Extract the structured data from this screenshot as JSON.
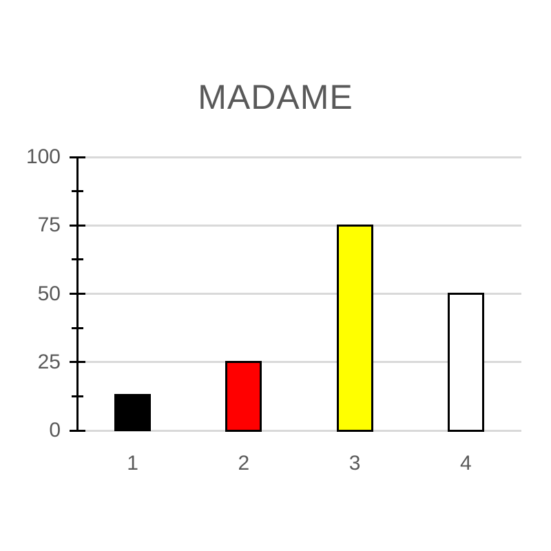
{
  "page": {
    "background": "#ffffff"
  },
  "chart_data": {
    "type": "bar",
    "title": "MADAME",
    "categories": [
      "1",
      "2",
      "3",
      "4"
    ],
    "values": [
      13,
      25,
      75,
      50
    ],
    "bar_fill_colors": [
      "#000000",
      "#ff0000",
      "#ffff00",
      "#ffffff"
    ],
    "bar_border_color": "#000000",
    "xlabel": "",
    "ylabel": "",
    "ylim": [
      0,
      100
    ],
    "yticks_major": [
      0,
      25,
      50,
      75,
      100
    ],
    "ytick_labels": [
      "0",
      "25",
      "50",
      "75",
      "100"
    ],
    "yticks_minor": [
      12.5,
      37.5,
      62.5,
      87.5
    ],
    "grid": "horizontal-major",
    "legend": "none",
    "colors": {
      "title": "#595959",
      "tick_label": "#595959",
      "gridline": "#d9d9d9",
      "axis": "#000000",
      "plot_background": "#ffffff"
    }
  }
}
